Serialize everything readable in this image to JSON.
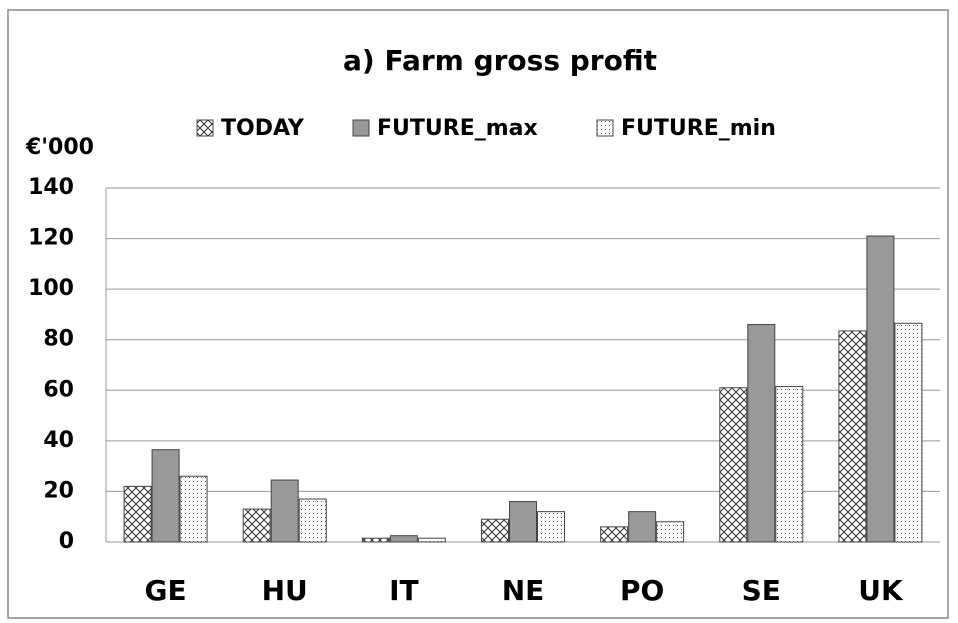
{
  "chart_data": {
    "type": "bar",
    "title": "a) Farm gross profit",
    "y_label": "€'000",
    "categories": [
      "GE",
      "HU",
      "IT",
      "NE",
      "PO",
      "SE",
      "UK"
    ],
    "series": [
      {
        "name": "TODAY",
        "color": "#ffffff",
        "pattern": "crosshatch",
        "values": [
          22,
          13,
          1.5,
          9,
          6,
          61,
          83.5
        ]
      },
      {
        "name": "FUTURE_max",
        "color": "#999999",
        "pattern": "solid",
        "values": [
          36.5,
          24.5,
          2.5,
          16,
          12,
          86,
          121
        ]
      },
      {
        "name": "FUTURE_min",
        "color": "#ffffff",
        "pattern": "dots",
        "values": [
          26,
          17,
          1.5,
          12,
          8,
          61.5,
          86.5
        ]
      }
    ],
    "ylim": [
      0,
      140
    ],
    "yticks": [
      0,
      20,
      40,
      60,
      80,
      100,
      120,
      140
    ],
    "grid": true,
    "legend": "top"
  }
}
